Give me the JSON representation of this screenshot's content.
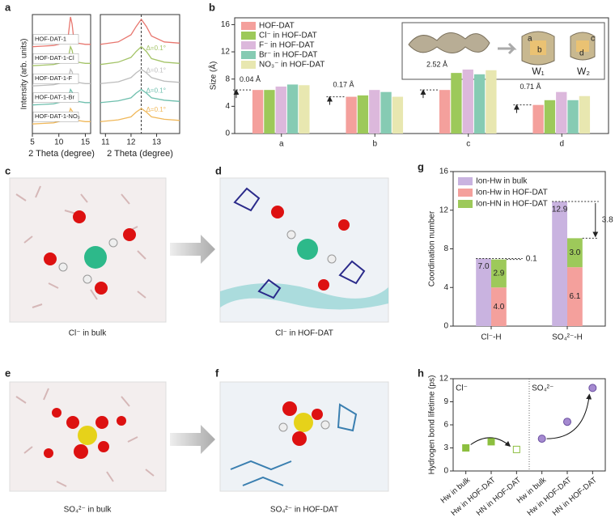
{
  "panel_labels": [
    "a",
    "b",
    "c",
    "d",
    "e",
    "f",
    "g",
    "h"
  ],
  "images": [
    {
      "caption": "Cl⁻ in bulk"
    },
    {
      "caption": "Cl⁻ in HOF-DAT"
    },
    {
      "caption": "SO₄²⁻  in bulk"
    },
    {
      "caption": "SO₄²⁻  in HOF-DAT"
    }
  ],
  "inset_labels": [
    "W₁",
    "W₂",
    "a",
    "b",
    "c",
    "d"
  ],
  "chart_data": [
    {
      "type": "line",
      "xlabel": "2 Theta (degree)",
      "ylabel": "Intensity (arb. units)",
      "xlim": [
        5,
        16
      ],
      "xticks": [
        5,
        10,
        15
      ],
      "ylim": [
        0,
        10
      ],
      "x": [
        5,
        7,
        9,
        10,
        11,
        11.8,
        12.2,
        12.5,
        12.8,
        13.5,
        15,
        16
      ],
      "series": [
        {
          "name": "HOF-DAT-1",
          "color": "#e8776f",
          "values": [
            7.3,
            7.35,
            7.4,
            7.5,
            7.7,
            8.3,
            9.8,
            9.2,
            8.0,
            7.6,
            7.5,
            7.5
          ]
        },
        {
          "name": "HOF-DAT-1-Cl",
          "color": "#a4c468",
          "values": [
            5.7,
            5.75,
            5.8,
            5.9,
            6.0,
            6.4,
            7.3,
            7.0,
            6.3,
            6.0,
            5.9,
            5.9
          ]
        },
        {
          "name": "HOF-DAT-1-F",
          "color": "#bdbdbd",
          "values": [
            4.0,
            4.05,
            4.1,
            4.2,
            4.3,
            4.6,
            5.4,
            5.2,
            4.6,
            4.3,
            4.2,
            4.2
          ]
        },
        {
          "name": "HOF-DAT-1-Br",
          "color": "#6ebfad",
          "values": [
            2.4,
            2.45,
            2.5,
            2.6,
            2.7,
            3.0,
            3.7,
            3.5,
            2.9,
            2.7,
            2.6,
            2.6
          ]
        },
        {
          "name": "HOF-DAT-1-NO₃",
          "color": "#f0b85a",
          "values": [
            0.8,
            0.85,
            0.9,
            1.0,
            1.1,
            1.4,
            2.1,
            1.9,
            1.3,
            1.1,
            1.0,
            1.0
          ]
        }
      ]
    },
    {
      "type": "line",
      "xlabel": "2 Theta (degree)",
      "xlim": [
        10.8,
        13.9
      ],
      "xticks": [
        11,
        12,
        13
      ],
      "ylim": [
        0,
        10
      ],
      "ref_x": 12.4,
      "annotations": [
        "Δ=0.1°",
        "Δ=0.1°",
        "Δ=0.1°",
        "Δ=0.1°"
      ],
      "x": [
        10.8,
        11.5,
        12.0,
        12.2,
        12.4,
        12.6,
        12.8,
        13.3,
        13.9
      ],
      "series": [
        {
          "color": "#e8776f",
          "values": [
            7.5,
            7.7,
            8.3,
            9.0,
            9.6,
            9.0,
            8.2,
            7.7,
            7.6
          ]
        },
        {
          "color": "#a4c468",
          "values": [
            5.8,
            6.0,
            6.4,
            6.9,
            7.3,
            6.9,
            6.3,
            6.0,
            5.9
          ]
        },
        {
          "color": "#bdbdbd",
          "values": [
            4.2,
            4.35,
            4.7,
            5.1,
            5.4,
            5.1,
            4.7,
            4.4,
            4.3
          ]
        },
        {
          "color": "#6ebfad",
          "values": [
            2.6,
            2.75,
            3.0,
            3.4,
            3.7,
            3.4,
            3.0,
            2.8,
            2.7
          ]
        },
        {
          "color": "#f0b85a",
          "values": [
            1.0,
            1.15,
            1.4,
            1.8,
            2.1,
            1.8,
            1.4,
            1.2,
            1.1
          ]
        }
      ]
    },
    {
      "type": "bar",
      "ylabel": "Size (Å)",
      "ylim": [
        0,
        17
      ],
      "yticks": [
        0,
        4,
        8,
        12,
        16
      ],
      "categories": [
        "a",
        "b",
        "c",
        "d"
      ],
      "annotations": [
        "0.04 Å",
        "0.17 Å",
        "2.52 Å",
        "0.71 Å"
      ],
      "series": [
        {
          "name": "HOF-DAT",
          "color": "#f4a09c",
          "values": [
            6.4,
            5.4,
            6.4,
            4.2
          ]
        },
        {
          "name": "Cl⁻ in HOF-DAT",
          "color": "#9dc95a",
          "values": [
            6.4,
            5.6,
            8.9,
            4.9
          ]
        },
        {
          "name": "F⁻ in HOF-DAT",
          "color": "#dcb8dc",
          "values": [
            6.9,
            6.4,
            9.4,
            6.1
          ]
        },
        {
          "name": "Br⁻ in HOF-DAT",
          "color": "#86cbb3",
          "values": [
            7.2,
            6.1,
            8.7,
            4.9
          ]
        },
        {
          "name": "NO₃⁻ in HOF-DAT",
          "color": "#e8e7b0",
          "values": [
            7.1,
            5.4,
            9.3,
            5.5
          ]
        }
      ]
    },
    {
      "type": "stacked_bar",
      "ylabel": "Coordination number",
      "ylim": [
        0,
        16
      ],
      "yticks": [
        0,
        4,
        8,
        12,
        16
      ],
      "categories": [
        "Cl⁻-H",
        "SO₄²⁻-H"
      ],
      "annotations": [
        "0.1",
        "3.8"
      ],
      "series": [
        {
          "name": "Ion-Hw in bulk",
          "color": "#c9b3e0",
          "stack": 0,
          "values": [
            7,
            12.9
          ],
          "value_labels": [
            "7.0",
            "12.9"
          ]
        },
        {
          "name": "Ion-Hw in HOF-DAT",
          "color": "#f4a09c",
          "stack": 1,
          "values": [
            4,
            6.1
          ],
          "value_labels": [
            "4.0",
            "6.1"
          ]
        },
        {
          "name": "Ion-HN in HOF-DAT",
          "color": "#9dc95a",
          "stack": 1,
          "values": [
            2.9,
            3
          ],
          "value_labels": [
            "2.9",
            "3.0"
          ]
        }
      ]
    },
    {
      "type": "scatter",
      "ylabel": "Hydrogen bond lifetime (ps)",
      "ylim": [
        0,
        12
      ],
      "yticks": [
        0,
        3,
        6,
        9,
        12
      ],
      "categories": [
        "Hw in bulk",
        "Hw in HOF-DAT",
        "HN in HOF-DAT",
        "Hw in bulk",
        "Hw in HOF-DAT",
        "HN in HOF-DAT"
      ],
      "series": [
        {
          "name": "Cl⁻",
          "color": "#8cbf3f",
          "marker": "square",
          "values": [
            3.0,
            3.8,
            2.8,
            null,
            null,
            null
          ]
        },
        {
          "name": "SO₄²⁻",
          "color": "#a58ad0",
          "marker": "circle",
          "values": [
            null,
            null,
            null,
            4.2,
            6.4,
            10.8
          ]
        }
      ]
    }
  ]
}
